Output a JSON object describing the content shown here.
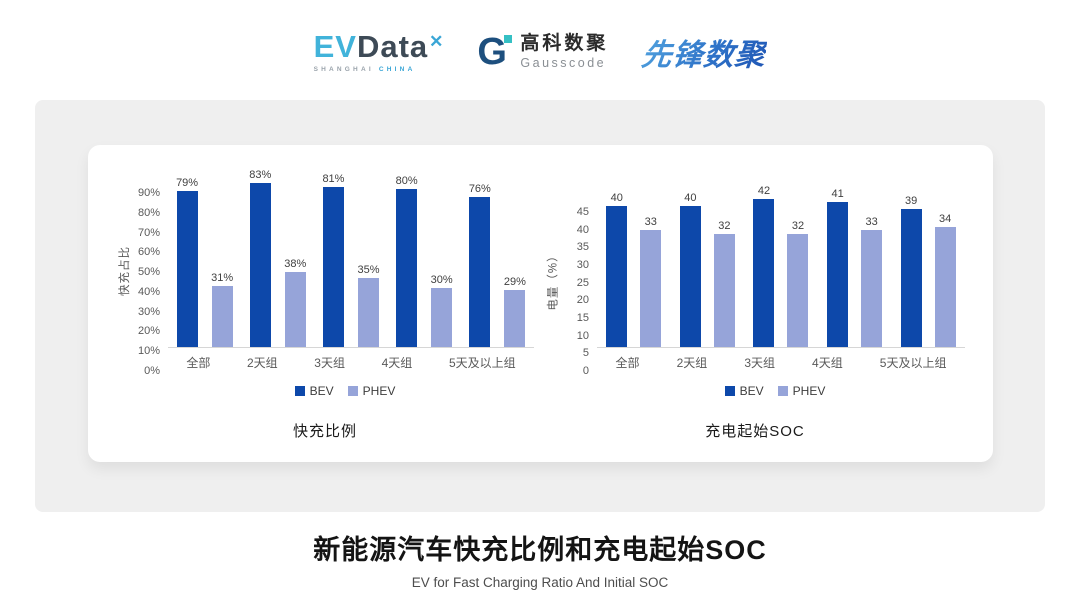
{
  "header": {
    "evdata": {
      "ev": "EV",
      "data": "Data",
      "mark": "✕",
      "sub_left": "SHANGHAI",
      "sub_right": "CHINA"
    },
    "gausscode": {
      "mark": "G",
      "cn": "高科数聚",
      "en": "Gausscode"
    },
    "xianfeng": {
      "text": "先锋数聚"
    }
  },
  "colors": {
    "bev": "#0d48aa",
    "phev": "#96a4d9",
    "card_gray": "#efefef",
    "axis_line": "#d6d6d6"
  },
  "chart_data": [
    {
      "type": "bar",
      "caption": "快充比例",
      "ylabel": "快充占比",
      "ymax": 90,
      "ylim": [
        0,
        90
      ],
      "grid": false,
      "legend_position": "bottom",
      "yticks": [
        "90%",
        "80%",
        "70%",
        "60%",
        "50%",
        "40%",
        "30%",
        "20%",
        "10%",
        "0%"
      ],
      "categories": [
        "全部",
        "2天组",
        "3天组",
        "4天组",
        "5天及以上组"
      ],
      "series": [
        {
          "name": "BEV",
          "color": "#0d48aa",
          "values": [
            79,
            83,
            81,
            80,
            76
          ],
          "labels": [
            "79%",
            "83%",
            "81%",
            "80%",
            "76%"
          ]
        },
        {
          "name": "PHEV",
          "color": "#96a4d9",
          "values": [
            31,
            38,
            35,
            30,
            29
          ],
          "labels": [
            "31%",
            "38%",
            "35%",
            "30%",
            "29%"
          ]
        }
      ]
    },
    {
      "type": "bar",
      "caption": "充电起始SOC",
      "ylabel": "电量（%）",
      "ymax": 45,
      "ylim": [
        0,
        45
      ],
      "grid": false,
      "legend_position": "bottom",
      "yticks": [
        "45",
        "40",
        "35",
        "30",
        "25",
        "20",
        "15",
        "10",
        "5",
        "0"
      ],
      "categories": [
        "全部",
        "2天组",
        "3天组",
        "4天组",
        "5天及以上组"
      ],
      "series": [
        {
          "name": "BEV",
          "color": "#0d48aa",
          "values": [
            40,
            40,
            42,
            41,
            39
          ],
          "labels": [
            "40",
            "40",
            "42",
            "41",
            "39"
          ]
        },
        {
          "name": "PHEV",
          "color": "#96a4d9",
          "values": [
            33,
            32,
            32,
            33,
            34
          ],
          "labels": [
            "33",
            "32",
            "32",
            "33",
            "34"
          ]
        }
      ]
    }
  ],
  "footer": {
    "title": "新能源汽车快充比例和充电起始SOC",
    "subtitle": "EV for Fast Charging Ratio And Initial SOC"
  }
}
